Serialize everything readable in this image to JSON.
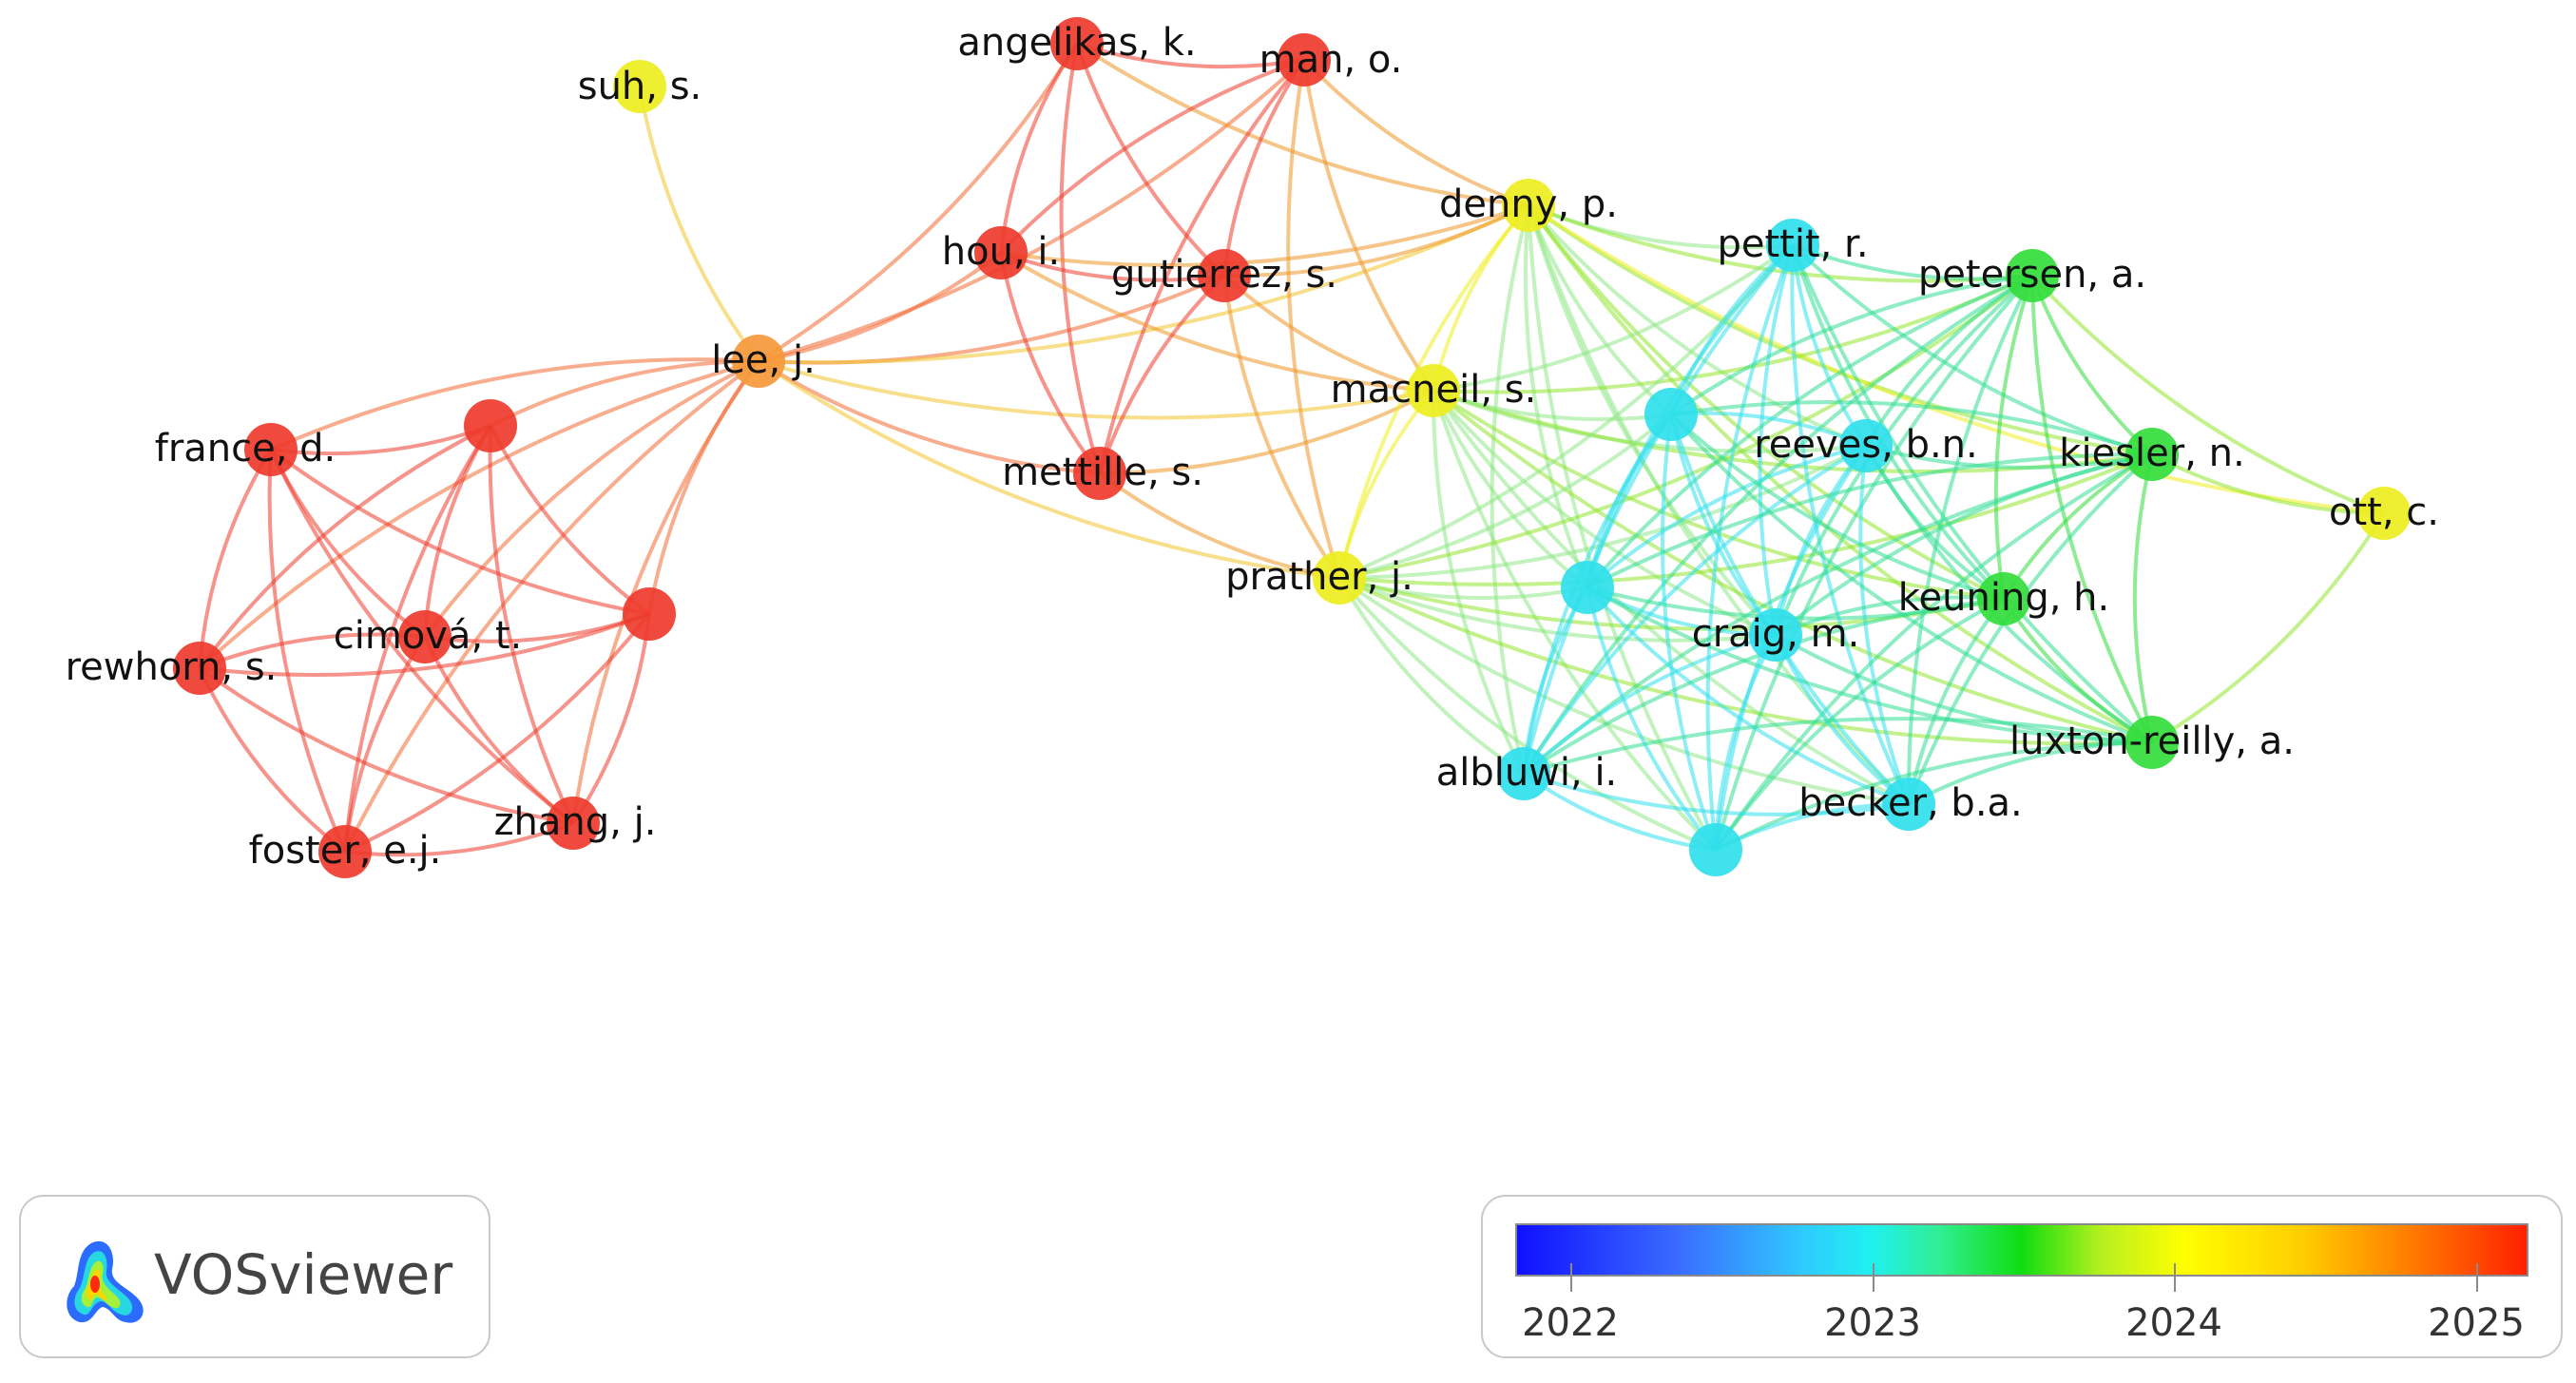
{
  "nodes": [
    {
      "id": "angelikas",
      "label": "angelikas, k.",
      "color": "#ee3b2c"
    },
    {
      "id": "man",
      "label": "man, o.",
      "color": "#ee3b2c"
    },
    {
      "id": "suh",
      "label": "suh, s.",
      "color": "#eeee20"
    },
    {
      "id": "denny",
      "label": "denny, p.",
      "color": "#eeee20"
    },
    {
      "id": "hou",
      "label": "hou, i.",
      "color": "#ee3b2c"
    },
    {
      "id": "gutierrez",
      "label": "gutierrez, s.",
      "color": "#ee3b2c"
    },
    {
      "id": "pettit",
      "label": "pettit, r.",
      "color": "#30e0ec"
    },
    {
      "id": "petersen",
      "label": "petersen, a.",
      "color": "#33dd3c"
    },
    {
      "id": "lee",
      "label": "lee, j.",
      "color": "#f5993a"
    },
    {
      "id": "macneil",
      "label": "macneil, s.",
      "color": "#eeee20"
    },
    {
      "id": "unlabeled1",
      "label": "",
      "color": "#ee3b2c"
    },
    {
      "id": "france",
      "label": "france, d.",
      "color": "#ee3b2c"
    },
    {
      "id": "reeves",
      "label": "reeves, b.n.",
      "color": "#30e0ec"
    },
    {
      "id": "kiesler",
      "label": "kiesler, n.",
      "color": "#33dd3c"
    },
    {
      "id": "unlabeled2",
      "label": "",
      "color": "#30e0ec"
    },
    {
      "id": "mettille",
      "label": "mettille, s.",
      "color": "#ee3b2c"
    },
    {
      "id": "ott",
      "label": "ott, c.",
      "color": "#eeee20"
    },
    {
      "id": "prather",
      "label": "prather, j.",
      "color": "#eeee20"
    },
    {
      "id": "unlabeled3",
      "label": "",
      "color": "#30e0ec"
    },
    {
      "id": "keuning",
      "label": "keuning, h.",
      "color": "#33dd3c"
    },
    {
      "id": "unlabeled4",
      "label": "",
      "color": "#ee3b2c"
    },
    {
      "id": "cimova",
      "label": "cimová, t.",
      "color": "#ee3b2c"
    },
    {
      "id": "craig",
      "label": "craig, m.",
      "color": "#30e0ec"
    },
    {
      "id": "rewhorn",
      "label": "rewhorn, s.",
      "color": "#ee3b2c"
    },
    {
      "id": "luxton",
      "label": "luxton-reilly, a.",
      "color": "#33dd3c"
    },
    {
      "id": "albluwi",
      "label": "albluwi, i.",
      "color": "#30e0ec"
    },
    {
      "id": "becker",
      "label": "becker, b.a.",
      "color": "#30e0ec"
    },
    {
      "id": "zhang",
      "label": "zhang, j.",
      "color": "#ee3b2c"
    },
    {
      "id": "foster",
      "label": "foster, e.j.",
      "color": "#ee3b2c"
    },
    {
      "id": "unlabeled5",
      "label": "",
      "color": "#30e0ec"
    }
  ],
  "edges": [
    [
      "suh",
      "lee"
    ],
    [
      "lee",
      "france"
    ],
    [
      "lee",
      "unlabeled1"
    ],
    [
      "lee",
      "cimova"
    ],
    [
      "lee",
      "rewhorn"
    ],
    [
      "lee",
      "foster"
    ],
    [
      "lee",
      "zhang"
    ],
    [
      "lee",
      "unlabeled4"
    ],
    [
      "lee",
      "hou"
    ],
    [
      "lee",
      "gutierrez"
    ],
    [
      "lee",
      "angelikas"
    ],
    [
      "lee",
      "man"
    ],
    [
      "lee",
      "mettille"
    ],
    [
      "lee",
      "macneil"
    ],
    [
      "lee",
      "denny"
    ],
    [
      "lee",
      "prather"
    ],
    [
      "france",
      "unlabeled1"
    ],
    [
      "france",
      "cimova"
    ],
    [
      "france",
      "rewhorn"
    ],
    [
      "france",
      "foster"
    ],
    [
      "france",
      "zhang"
    ],
    [
      "france",
      "unlabeled4"
    ],
    [
      "unlabeled1",
      "cimova"
    ],
    [
      "unlabeled1",
      "rewhorn"
    ],
    [
      "unlabeled1",
      "foster"
    ],
    [
      "unlabeled1",
      "zhang"
    ],
    [
      "unlabeled1",
      "unlabeled4"
    ],
    [
      "cimova",
      "rewhorn"
    ],
    [
      "cimova",
      "foster"
    ],
    [
      "cimova",
      "zhang"
    ],
    [
      "cimova",
      "unlabeled4"
    ],
    [
      "rewhorn",
      "foster"
    ],
    [
      "rewhorn",
      "zhang"
    ],
    [
      "rewhorn",
      "unlabeled4"
    ],
    [
      "foster",
      "zhang"
    ],
    [
      "foster",
      "unlabeled4"
    ],
    [
      "zhang",
      "unlabeled4"
    ],
    [
      "angelikas",
      "man"
    ],
    [
      "angelikas",
      "hou"
    ],
    [
      "angelikas",
      "gutierrez"
    ],
    [
      "angelikas",
      "mettille"
    ],
    [
      "angelikas",
      "denny"
    ],
    [
      "man",
      "hou"
    ],
    [
      "man",
      "gutierrez"
    ],
    [
      "man",
      "mettille"
    ],
    [
      "man",
      "denny"
    ],
    [
      "man",
      "macneil"
    ],
    [
      "man",
      "prather"
    ],
    [
      "hou",
      "gutierrez"
    ],
    [
      "hou",
      "mettille"
    ],
    [
      "hou",
      "macneil"
    ],
    [
      "hou",
      "denny"
    ],
    [
      "gutierrez",
      "mettille"
    ],
    [
      "gutierrez",
      "denny"
    ],
    [
      "gutierrez",
      "macneil"
    ],
    [
      "gutierrez",
      "prather"
    ],
    [
      "mettille",
      "macneil"
    ],
    [
      "mettille",
      "prather"
    ],
    [
      "denny",
      "macneil"
    ],
    [
      "denny",
      "prather"
    ],
    [
      "denny",
      "pettit"
    ],
    [
      "denny",
      "petersen"
    ],
    [
      "denny",
      "reeves"
    ],
    [
      "denny",
      "kiesler"
    ],
    [
      "denny",
      "unlabeled2"
    ],
    [
      "denny",
      "unlabeled3"
    ],
    [
      "denny",
      "keuning"
    ],
    [
      "denny",
      "craig"
    ],
    [
      "denny",
      "luxton"
    ],
    [
      "denny",
      "albluwi"
    ],
    [
      "denny",
      "becker"
    ],
    [
      "denny",
      "ott"
    ],
    [
      "denny",
      "unlabeled5"
    ],
    [
      "macneil",
      "prather"
    ],
    [
      "macneil",
      "pettit"
    ],
    [
      "macneil",
      "petersen"
    ],
    [
      "macneil",
      "reeves"
    ],
    [
      "macneil",
      "kiesler"
    ],
    [
      "macneil",
      "unlabeled2"
    ],
    [
      "macneil",
      "unlabeled3"
    ],
    [
      "macneil",
      "keuning"
    ],
    [
      "macneil",
      "craig"
    ],
    [
      "macneil",
      "luxton"
    ],
    [
      "macneil",
      "albluwi"
    ],
    [
      "macneil",
      "becker"
    ],
    [
      "macneil",
      "unlabeled5"
    ],
    [
      "prather",
      "pettit"
    ],
    [
      "prather",
      "petersen"
    ],
    [
      "prather",
      "reeves"
    ],
    [
      "prather",
      "kiesler"
    ],
    [
      "prather",
      "unlabeled2"
    ],
    [
      "prather",
      "unlabeled3"
    ],
    [
      "prather",
      "keuning"
    ],
    [
      "prather",
      "craig"
    ],
    [
      "prather",
      "luxton"
    ],
    [
      "prather",
      "albluwi"
    ],
    [
      "prather",
      "becker"
    ],
    [
      "prather",
      "unlabeled5"
    ],
    [
      "pettit",
      "petersen"
    ],
    [
      "pettit",
      "reeves"
    ],
    [
      "pettit",
      "kiesler"
    ],
    [
      "pettit",
      "unlabeled2"
    ],
    [
      "pettit",
      "unlabeled3"
    ],
    [
      "pettit",
      "keuning"
    ],
    [
      "pettit",
      "craig"
    ],
    [
      "pettit",
      "luxton"
    ],
    [
      "pettit",
      "albluwi"
    ],
    [
      "pettit",
      "becker"
    ],
    [
      "pettit",
      "unlabeled5"
    ],
    [
      "petersen",
      "reeves"
    ],
    [
      "petersen",
      "kiesler"
    ],
    [
      "petersen",
      "unlabeled2"
    ],
    [
      "petersen",
      "unlabeled3"
    ],
    [
      "petersen",
      "keuning"
    ],
    [
      "petersen",
      "craig"
    ],
    [
      "petersen",
      "luxton"
    ],
    [
      "petersen",
      "albluwi"
    ],
    [
      "petersen",
      "becker"
    ],
    [
      "petersen",
      "ott"
    ],
    [
      "petersen",
      "unlabeled5"
    ],
    [
      "reeves",
      "kiesler"
    ],
    [
      "reeves",
      "unlabeled2"
    ],
    [
      "reeves",
      "unlabeled3"
    ],
    [
      "reeves",
      "keuning"
    ],
    [
      "reeves",
      "craig"
    ],
    [
      "reeves",
      "luxton"
    ],
    [
      "reeves",
      "albluwi"
    ],
    [
      "reeves",
      "becker"
    ],
    [
      "reeves",
      "unlabeled5"
    ],
    [
      "kiesler",
      "unlabeled2"
    ],
    [
      "kiesler",
      "unlabeled3"
    ],
    [
      "kiesler",
      "keuning"
    ],
    [
      "kiesler",
      "craig"
    ],
    [
      "kiesler",
      "luxton"
    ],
    [
      "kiesler",
      "albluwi"
    ],
    [
      "kiesler",
      "becker"
    ],
    [
      "kiesler",
      "ott"
    ],
    [
      "kiesler",
      "unlabeled5"
    ],
    [
      "unlabeled2",
      "unlabeled3"
    ],
    [
      "unlabeled2",
      "keuning"
    ],
    [
      "unlabeled2",
      "craig"
    ],
    [
      "unlabeled2",
      "luxton"
    ],
    [
      "unlabeled2",
      "albluwi"
    ],
    [
      "unlabeled2",
      "becker"
    ],
    [
      "unlabeled2",
      "unlabeled5"
    ],
    [
      "unlabeled3",
      "keuning"
    ],
    [
      "unlabeled3",
      "craig"
    ],
    [
      "unlabeled3",
      "luxton"
    ],
    [
      "unlabeled3",
      "albluwi"
    ],
    [
      "unlabeled3",
      "becker"
    ],
    [
      "unlabeled3",
      "unlabeled5"
    ],
    [
      "keuning",
      "craig"
    ],
    [
      "keuning",
      "luxton"
    ],
    [
      "keuning",
      "albluwi"
    ],
    [
      "keuning",
      "becker"
    ],
    [
      "keuning",
      "unlabeled5"
    ],
    [
      "craig",
      "luxton"
    ],
    [
      "craig",
      "albluwi"
    ],
    [
      "craig",
      "becker"
    ],
    [
      "craig",
      "unlabeled5"
    ],
    [
      "luxton",
      "albluwi"
    ],
    [
      "luxton",
      "becker"
    ],
    [
      "luxton",
      "ott"
    ],
    [
      "luxton",
      "unlabeled5"
    ],
    [
      "albluwi",
      "becker"
    ],
    [
      "albluwi",
      "unlabeled5"
    ],
    [
      "becker",
      "unlabeled5"
    ]
  ],
  "logo": {
    "text": "VOSviewer"
  },
  "legend": {
    "ticks": [
      "2022",
      "2023",
      "2024",
      "2025"
    ]
  }
}
